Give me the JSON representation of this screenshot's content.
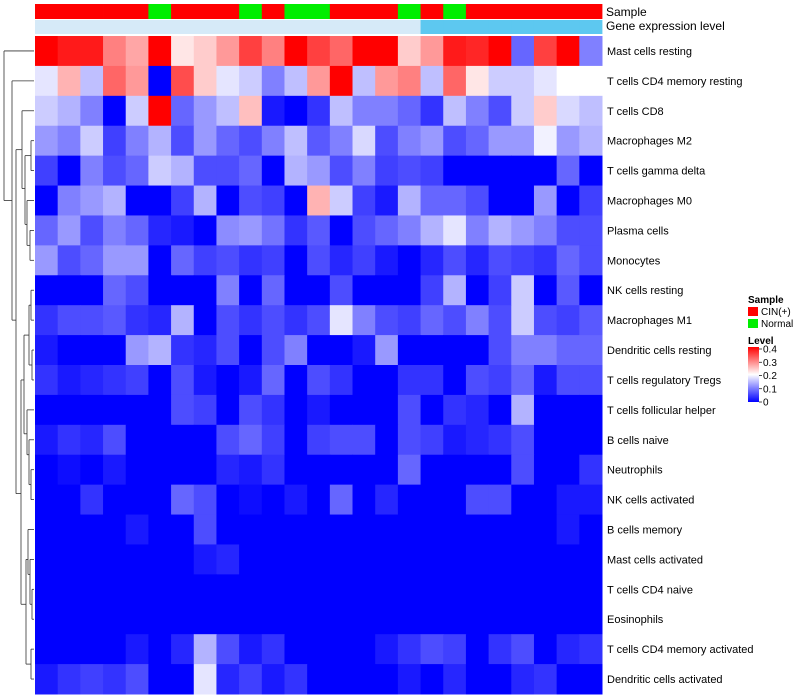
{
  "chart_data": {
    "type": "heatmap",
    "title": "",
    "annotation_tracks": [
      "Sample",
      "Gene expression level"
    ],
    "samples": [
      "CIN(+)",
      "CIN(+)",
      "CIN(+)",
      "CIN(+)",
      "CIN(+)",
      "Normal",
      "CIN(+)",
      "CIN(+)",
      "CIN(+)",
      "Normal",
      "CIN(+)",
      "Normal",
      "Normal",
      "CIN(+)",
      "CIN(+)",
      "CIN(+)",
      "Normal",
      "CIN(+)",
      "Normal",
      "CIN(+)",
      "CIN(+)",
      "CIN(+)",
      "CIN(+)",
      "CIN(+)",
      "CIN(+)"
    ],
    "expression_group": [
      "low",
      "low",
      "low",
      "low",
      "low",
      "low",
      "low",
      "low",
      "low",
      "low",
      "low",
      "low",
      "low",
      "low",
      "low",
      "low",
      "low",
      "high",
      "high",
      "high",
      "high",
      "high",
      "high",
      "high",
      "high"
    ],
    "expression_colors": {
      "low": "#d6eaf8",
      "high": "#5dc8f0"
    },
    "rows": [
      "Mast cells resting",
      "T cells CD4 memory resting",
      "T cells CD8",
      "Macrophages M2",
      "T cells gamma delta",
      "Macrophages M0",
      "Plasma cells",
      "Monocytes",
      "NK cells resting",
      "Macrophages M1",
      "Dendritic cells resting",
      "T cells regulatory  Tregs",
      "T cells follicular helper",
      "B cells naive",
      "Neutrophils",
      "NK cells activated",
      "B cells memory",
      "Mast cells activated",
      "T cells CD4 naive",
      "Eosinophils",
      "T cells CD4 memory activated",
      "Dendritic cells activated"
    ],
    "values": [
      [
        0.4,
        0.38,
        0.38,
        0.3,
        0.27,
        0.4,
        0.22,
        0.24,
        0.28,
        0.35,
        0.3,
        0.4,
        0.35,
        0.32,
        0.4,
        0.4,
        0.24,
        0.28,
        0.38,
        0.37,
        0.4,
        0.08,
        0.35,
        0.4,
        0.1
      ],
      [
        0.18,
        0.26,
        0.15,
        0.32,
        0.28,
        0.0,
        0.34,
        0.24,
        0.18,
        0.16,
        0.1,
        0.15,
        0.28,
        0.4,
        0.15,
        0.28,
        0.3,
        0.15,
        0.32,
        0.22,
        0.16,
        0.16,
        0.18,
        0.2,
        0.2
      ],
      [
        0.16,
        0.14,
        0.1,
        0.0,
        0.16,
        0.4,
        0.08,
        0.12,
        0.15,
        0.25,
        0.02,
        0.0,
        0.04,
        0.15,
        0.1,
        0.1,
        0.08,
        0.04,
        0.15,
        0.1,
        0.06,
        0.16,
        0.24,
        0.17,
        0.15
      ],
      [
        0.12,
        0.1,
        0.16,
        0.05,
        0.1,
        0.14,
        0.06,
        0.12,
        0.08,
        0.06,
        0.1,
        0.15,
        0.07,
        0.1,
        0.17,
        0.06,
        0.1,
        0.12,
        0.06,
        0.08,
        0.12,
        0.12,
        0.19,
        0.12,
        0.14
      ],
      [
        0.05,
        0.0,
        0.1,
        0.06,
        0.08,
        0.16,
        0.14,
        0.06,
        0.06,
        0.08,
        0.0,
        0.14,
        0.12,
        0.06,
        0.1,
        0.05,
        0.06,
        0.05,
        0.0,
        0.0,
        0.0,
        0.0,
        0.0,
        0.08,
        0.0
      ],
      [
        0.0,
        0.1,
        0.12,
        0.14,
        0.0,
        0.0,
        0.05,
        0.14,
        0.0,
        0.06,
        0.05,
        0.0,
        0.26,
        0.16,
        0.05,
        0.02,
        0.14,
        0.08,
        0.08,
        0.06,
        0.0,
        0.0,
        0.12,
        0.0,
        0.05
      ],
      [
        0.08,
        0.12,
        0.06,
        0.1,
        0.08,
        0.03,
        0.02,
        0.0,
        0.11,
        0.12,
        0.09,
        0.04,
        0.07,
        0.0,
        0.06,
        0.08,
        0.1,
        0.14,
        0.18,
        0.1,
        0.14,
        0.12,
        0.1,
        0.06,
        0.06
      ],
      [
        0.12,
        0.06,
        0.08,
        0.12,
        0.12,
        0.0,
        0.08,
        0.05,
        0.06,
        0.04,
        0.05,
        0.0,
        0.06,
        0.03,
        0.05,
        0.02,
        0.0,
        0.03,
        0.06,
        0.03,
        0.06,
        0.05,
        0.04,
        0.08,
        0.06
      ],
      [
        0.0,
        0.0,
        0.0,
        0.08,
        0.06,
        0.0,
        0.0,
        0.0,
        0.1,
        0.0,
        0.08,
        0.0,
        0.0,
        0.06,
        0.0,
        0.0,
        0.0,
        0.05,
        0.14,
        0.0,
        0.05,
        0.16,
        0.0,
        0.07,
        0.0
      ],
      [
        0.04,
        0.06,
        0.06,
        0.07,
        0.04,
        0.03,
        0.14,
        0.0,
        0.06,
        0.04,
        0.06,
        0.04,
        0.06,
        0.18,
        0.1,
        0.06,
        0.05,
        0.08,
        0.06,
        0.1,
        0.06,
        0.16,
        0.06,
        0.05,
        0.07
      ],
      [
        0.02,
        0.0,
        0.0,
        0.0,
        0.12,
        0.14,
        0.04,
        0.03,
        0.06,
        0.0,
        0.06,
        0.1,
        0.0,
        0.0,
        0.02,
        0.12,
        0.0,
        0.0,
        0.0,
        0.0,
        0.06,
        0.1,
        0.1,
        0.08,
        0.08
      ],
      [
        0.04,
        0.02,
        0.03,
        0.04,
        0.05,
        0.0,
        0.06,
        0.02,
        0.0,
        0.02,
        0.08,
        0.0,
        0.06,
        0.04,
        0.0,
        0.0,
        0.04,
        0.04,
        0.0,
        0.06,
        0.05,
        0.08,
        0.02,
        0.06,
        0.06
      ],
      [
        0.0,
        0.0,
        0.0,
        0.0,
        0.0,
        0.0,
        0.06,
        0.05,
        0.0,
        0.06,
        0.04,
        0.0,
        0.02,
        0.0,
        0.0,
        0.0,
        0.06,
        0.0,
        0.04,
        0.03,
        0.0,
        0.14,
        0.0,
        0.0,
        0.0
      ],
      [
        0.02,
        0.04,
        0.03,
        0.06,
        0.0,
        0.0,
        0.0,
        0.0,
        0.06,
        0.08,
        0.05,
        0.0,
        0.05,
        0.06,
        0.06,
        0.0,
        0.06,
        0.05,
        0.02,
        0.03,
        0.04,
        0.06,
        0.0,
        0.0,
        0.0
      ],
      [
        0.0,
        0.01,
        0.0,
        0.02,
        0.0,
        0.0,
        0.0,
        0.0,
        0.03,
        0.02,
        0.04,
        0.0,
        0.0,
        0.0,
        0.0,
        0.0,
        0.08,
        0.0,
        0.0,
        0.0,
        0.0,
        0.06,
        0.0,
        0.0,
        0.04
      ],
      [
        0.0,
        0.0,
        0.04,
        0.0,
        0.0,
        0.0,
        0.08,
        0.06,
        0.0,
        0.01,
        0.0,
        0.02,
        0.0,
        0.08,
        0.0,
        0.03,
        0.0,
        0.0,
        0.0,
        0.06,
        0.06,
        0.0,
        0.0,
        0.02,
        0.02
      ],
      [
        0.0,
        0.0,
        0.0,
        0.0,
        0.02,
        0.0,
        0.0,
        0.06,
        0.0,
        0.0,
        0.0,
        0.0,
        0.0,
        0.0,
        0.0,
        0.0,
        0.0,
        0.0,
        0.0,
        0.0,
        0.0,
        0.0,
        0.0,
        0.02,
        0.0
      ],
      [
        0.0,
        0.0,
        0.0,
        0.0,
        0.0,
        0.0,
        0.0,
        0.02,
        0.03,
        0.0,
        0.0,
        0.0,
        0.0,
        0.0,
        0.0,
        0.0,
        0.0,
        0.0,
        0.0,
        0.0,
        0.0,
        0.0,
        0.0,
        0.0,
        0.0
      ],
      [
        0.0,
        0.0,
        0.0,
        0.0,
        0.0,
        0.0,
        0.0,
        0.0,
        0.0,
        0.0,
        0.0,
        0.0,
        0.0,
        0.0,
        0.0,
        0.0,
        0.0,
        0.0,
        0.0,
        0.0,
        0.0,
        0.0,
        0.0,
        0.0,
        0.0
      ],
      [
        0.0,
        0.0,
        0.0,
        0.0,
        0.0,
        0.0,
        0.0,
        0.0,
        0.0,
        0.0,
        0.0,
        0.0,
        0.0,
        0.0,
        0.0,
        0.0,
        0.0,
        0.0,
        0.0,
        0.0,
        0.0,
        0.0,
        0.0,
        0.0,
        0.0
      ],
      [
        0.0,
        0.0,
        0.0,
        0.0,
        0.02,
        0.0,
        0.03,
        0.14,
        0.06,
        0.02,
        0.04,
        0.0,
        0.0,
        0.0,
        0.0,
        0.02,
        0.04,
        0.06,
        0.05,
        0.0,
        0.04,
        0.06,
        0.0,
        0.03,
        0.04
      ],
      [
        0.02,
        0.04,
        0.05,
        0.04,
        0.06,
        0.0,
        0.0,
        0.18,
        0.03,
        0.05,
        0.02,
        0.04,
        0.0,
        0.0,
        0.0,
        0.0,
        0.02,
        0.0,
        0.03,
        0.0,
        0.0,
        0.03,
        0.04,
        0.0,
        0.0
      ]
    ],
    "legend": {
      "sample_title": "Sample",
      "sample_entries": [
        {
          "label": "CIN(+)",
          "color": "#ff0000"
        },
        {
          "label": "Normal",
          "color": "#00ee00"
        }
      ],
      "level_title": "Level",
      "level_ticks": [
        0.4,
        0.3,
        0.2,
        0.1,
        0
      ],
      "level_range": [
        0,
        0.4
      ],
      "colors": {
        "low": "#0000ff",
        "mid": "#ffffff",
        "high": "#ff0000"
      }
    }
  }
}
